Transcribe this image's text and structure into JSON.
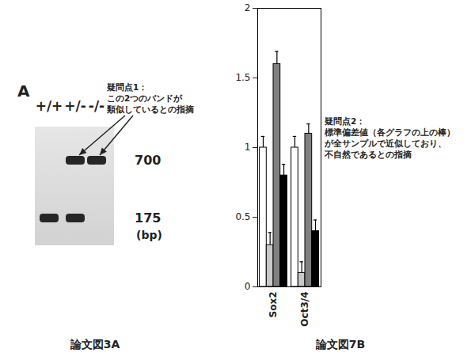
{
  "gel": {
    "panel": "A",
    "lanes": [
      "+/+",
      "+/-",
      "-/-"
    ],
    "sizes": [
      700,
      175
    ],
    "unit": "(bp)",
    "bands": [
      [
        175
      ],
      [
        700,
        175
      ],
      [
        700
      ]
    ],
    "caption": "論文図3A"
  },
  "annotations": [
    {
      "title": "疑問点1：",
      "lines": [
        "この2つのバンドが",
        "類似しているとの指摘"
      ]
    },
    {
      "title": "疑問点2：",
      "lines": [
        "標準偏差値（各グラフの上の棒）",
        "が全サンプルで近似しており、",
        "不自然であるとの指摘"
      ]
    }
  ],
  "chart_data": {
    "type": "bar",
    "caption": "論文図7B",
    "categories": [
      "Sox2",
      "Oct3/4"
    ],
    "series": [
      {
        "color": "#ffffff",
        "values": [
          1.0,
          1.0
        ],
        "errors": [
          0.08,
          0.08
        ]
      },
      {
        "color": "#c8c8c8",
        "values": [
          0.3,
          0.1
        ],
        "errors": [
          0.09,
          0.08
        ]
      },
      {
        "color": "#808080",
        "values": [
          1.6,
          1.1
        ],
        "errors": [
          0.09,
          0.07
        ]
      },
      {
        "color": "#000000",
        "values": [
          0.8,
          0.4
        ],
        "errors": [
          0.08,
          0.08
        ]
      }
    ],
    "ylim": [
      0,
      2
    ],
    "yticks": [
      0,
      0.5,
      1,
      1.5,
      2
    ]
  }
}
